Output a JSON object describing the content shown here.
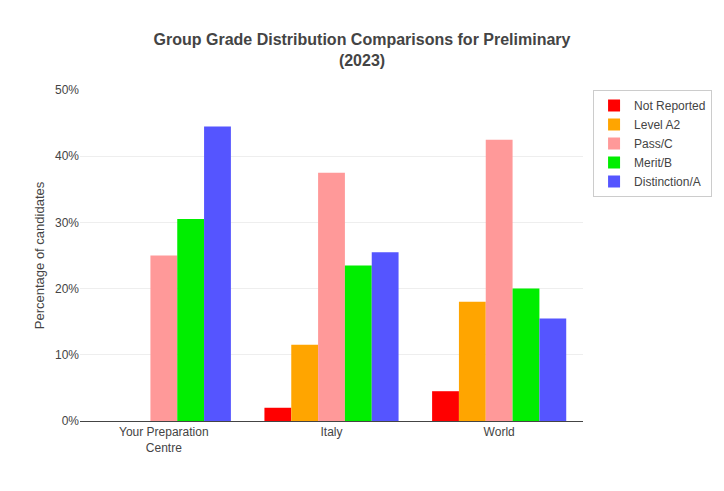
{
  "chart_data": {
    "type": "bar",
    "title": "Group Grade Distribution Comparisons for Preliminary\n(2023)",
    "ylabel": "Percentage of candidates",
    "categories": [
      "Your Preparation\nCentre",
      "Italy",
      "World"
    ],
    "series": [
      {
        "name": "Not Reported",
        "color": "#ff0000",
        "values": [
          0.0,
          2.0,
          4.5
        ]
      },
      {
        "name": "Level A2",
        "color": "#ffa500",
        "values": [
          0.0,
          11.5,
          18.0
        ]
      },
      {
        "name": "Pass/C",
        "color": "#ff9999",
        "values": [
          25.0,
          37.5,
          42.5
        ]
      },
      {
        "name": "Merit/B",
        "color": "#00ee00",
        "values": [
          30.5,
          23.5,
          20.0
        ]
      },
      {
        "name": "Distinction/A",
        "color": "#5555ff",
        "values": [
          44.5,
          25.5,
          15.5
        ]
      }
    ],
    "ylim": [
      0,
      50
    ],
    "yticks": [
      {
        "value": 0,
        "label": "0%"
      },
      {
        "value": 10,
        "label": "10%"
      },
      {
        "value": 20,
        "label": "20%"
      },
      {
        "value": 30,
        "label": "30%"
      },
      {
        "value": 40,
        "label": "40%"
      },
      {
        "value": 50,
        "label": "50%"
      }
    ],
    "grid": true,
    "legend": "upper right"
  }
}
